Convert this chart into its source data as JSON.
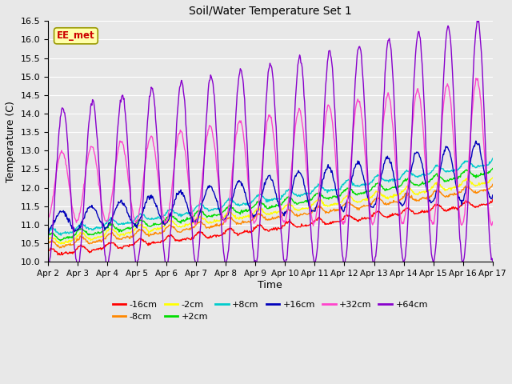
{
  "title": "Soil/Water Temperature Set 1",
  "xlabel": "Time",
  "ylabel": "Temperature (C)",
  "ylim": [
    10.0,
    16.5
  ],
  "yticks": [
    10.0,
    10.5,
    11.0,
    11.5,
    12.0,
    12.5,
    13.0,
    13.5,
    14.0,
    14.5,
    15.0,
    15.5,
    16.0,
    16.5
  ],
  "xtick_labels": [
    "Apr 2",
    "Apr 3",
    "Apr 4",
    "Apr 5",
    "Apr 6",
    "Apr 7",
    "Apr 8",
    "Apr 9",
    "Apr 10",
    "Apr 11",
    "Apr 12",
    "Apr 13",
    "Apr 14",
    "Apr 15",
    "Apr 16",
    "Apr 17"
  ],
  "n_days": 15,
  "n_points": 720,
  "series_order": [
    "-16cm",
    "-8cm",
    "-2cm",
    "+2cm",
    "+8cm",
    "+16cm",
    "+32cm",
    "+64cm"
  ],
  "series": {
    "-16cm": {
      "color": "#ff0000"
    },
    "-8cm": {
      "color": "#ff8800"
    },
    "-2cm": {
      "color": "#ffff00"
    },
    "+2cm": {
      "color": "#00dd00"
    },
    "+8cm": {
      "color": "#00cccc"
    },
    "+16cm": {
      "color": "#0000bb"
    },
    "+32cm": {
      "color": "#ff44cc"
    },
    "+64cm": {
      "color": "#8800cc"
    }
  },
  "legend_row1": [
    "-16cm",
    "-8cm",
    "-2cm",
    "+2cm",
    "+8cm",
    "+16cm"
  ],
  "legend_row2": [
    "+32cm",
    "+64cm"
  ],
  "ee_met_box": {
    "text": "EE_met",
    "facecolor": "#ffffaa",
    "edgecolor": "#999900",
    "textcolor": "#cc0000"
  },
  "background_color": "#e8e8e8",
  "grid_color": "#ffffff"
}
